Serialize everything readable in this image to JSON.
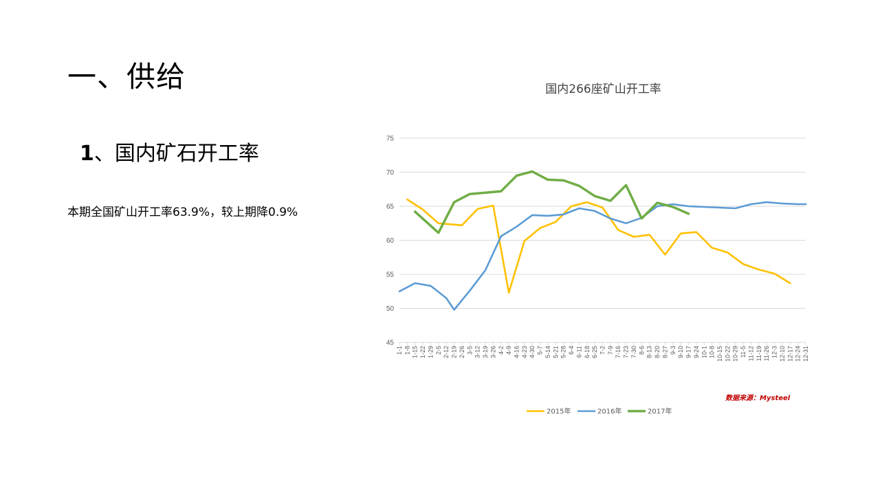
{
  "slide": {
    "title": "一、供给",
    "section_num": "1",
    "section_title": "、国内矿石开工率",
    "body": "本期全国矿山开工率63.9%，较上期降0.9%"
  },
  "source_note": "数据来源：Mysteel",
  "chart_data": {
    "type": "line",
    "title": "国内266座矿山开工率",
    "ylim": [
      45,
      75
    ],
    "yticks": [
      45,
      50,
      55,
      60,
      65,
      70,
      75
    ],
    "grid": true,
    "legend_position": "bottom",
    "categories": [
      "1-1",
      "1-8",
      "1-15",
      "1-22",
      "1-29",
      "2-5",
      "2-12",
      "2-19",
      "2-26",
      "3-5",
      "3-12",
      "3-19",
      "3-26",
      "4-2",
      "4-9",
      "4-16",
      "4-23",
      "4-30",
      "5-7",
      "5-14",
      "5-21",
      "5-28",
      "6-4",
      "6-11",
      "6-18",
      "6-25",
      "7-2",
      "7-9",
      "7-16",
      "7-23",
      "7-30",
      "8-6",
      "8-13",
      "8-20",
      "8-27",
      "9-3",
      "9-10",
      "9-17",
      "9-24",
      "10-1",
      "10-8",
      "10-15",
      "10-22",
      "10-29",
      "11-5",
      "11-12",
      "11-19",
      "11-26",
      "12-3",
      "12-10",
      "12-17",
      "12-24",
      "12-31"
    ],
    "series": [
      {
        "name": "2015年",
        "color": "#FFC000",
        "points": [
          {
            "x": "1-8",
            "y": 66.0
          },
          {
            "x": "1-22",
            "y": 64.5
          },
          {
            "x": "2-5",
            "y": 62.5
          },
          {
            "x": "2-19",
            "y": 62.3
          },
          {
            "x": "2-26",
            "y": 62.2
          },
          {
            "x": "3-12",
            "y": 64.6
          },
          {
            "x": "3-26",
            "y": 65.1
          },
          {
            "x": "4-9",
            "y": 52.3
          },
          {
            "x": "4-23",
            "y": 59.9
          },
          {
            "x": "5-7",
            "y": 61.8
          },
          {
            "x": "5-21",
            "y": 62.7
          },
          {
            "x": "6-4",
            "y": 65.0
          },
          {
            "x": "6-18",
            "y": 65.6
          },
          {
            "x": "7-2",
            "y": 64.8
          },
          {
            "x": "7-16",
            "y": 61.5
          },
          {
            "x": "7-30",
            "y": 60.5
          },
          {
            "x": "8-13",
            "y": 60.8
          },
          {
            "x": "8-27",
            "y": 57.9
          },
          {
            "x": "9-10",
            "y": 61.0
          },
          {
            "x": "9-24",
            "y": 61.2
          },
          {
            "x": "10-8",
            "y": 58.9
          },
          {
            "x": "10-22",
            "y": 58.2
          },
          {
            "x": "11-5",
            "y": 56.5
          },
          {
            "x": "11-19",
            "y": 55.7
          },
          {
            "x": "12-3",
            "y": 55.1
          },
          {
            "x": "12-17",
            "y": 53.7
          }
        ]
      },
      {
        "name": "2016年",
        "color": "#5B9BD5",
        "points": [
          {
            "x": "1-1",
            "y": 52.5
          },
          {
            "x": "1-15",
            "y": 53.7
          },
          {
            "x": "1-29",
            "y": 53.3
          },
          {
            "x": "2-12",
            "y": 51.5
          },
          {
            "x": "2-19",
            "y": 49.8
          },
          {
            "x": "3-5",
            "y": 52.6
          },
          {
            "x": "3-19",
            "y": 55.6
          },
          {
            "x": "4-2",
            "y": 60.6
          },
          {
            "x": "4-16",
            "y": 62.0
          },
          {
            "x": "4-30",
            "y": 63.7
          },
          {
            "x": "5-14",
            "y": 63.6
          },
          {
            "x": "5-28",
            "y": 63.8
          },
          {
            "x": "6-11",
            "y": 64.7
          },
          {
            "x": "6-25",
            "y": 64.3
          },
          {
            "x": "7-9",
            "y": 63.2
          },
          {
            "x": "7-23",
            "y": 62.5
          },
          {
            "x": "8-6",
            "y": 63.3
          },
          {
            "x": "8-20",
            "y": 65.0
          },
          {
            "x": "9-3",
            "y": 65.3
          },
          {
            "x": "9-17",
            "y": 65.0
          },
          {
            "x": "10-1",
            "y": 64.9
          },
          {
            "x": "10-15",
            "y": 64.8
          },
          {
            "x": "10-29",
            "y": 64.7
          },
          {
            "x": "11-12",
            "y": 65.3
          },
          {
            "x": "11-26",
            "y": 65.6
          },
          {
            "x": "12-10",
            "y": 65.4
          },
          {
            "x": "12-24",
            "y": 65.3
          },
          {
            "x": "12-31",
            "y": 65.3
          }
        ]
      },
      {
        "name": "2017年",
        "color": "#70AD47",
        "points": [
          {
            "x": "1-15",
            "y": 64.2
          },
          {
            "x": "2-5",
            "y": 61.1
          },
          {
            "x": "2-19",
            "y": 65.6
          },
          {
            "x": "3-5",
            "y": 66.8
          },
          {
            "x": "3-19",
            "y": 67.0
          },
          {
            "x": "4-2",
            "y": 67.2
          },
          {
            "x": "4-16",
            "y": 69.5
          },
          {
            "x": "4-30",
            "y": 70.1
          },
          {
            "x": "5-14",
            "y": 68.9
          },
          {
            "x": "5-28",
            "y": 68.8
          },
          {
            "x": "6-11",
            "y": 68.0
          },
          {
            "x": "6-25",
            "y": 66.5
          },
          {
            "x": "7-9",
            "y": 65.8
          },
          {
            "x": "7-23",
            "y": 68.1
          },
          {
            "x": "8-6",
            "y": 63.2
          },
          {
            "x": "8-20",
            "y": 65.5
          },
          {
            "x": "9-3",
            "y": 64.9
          },
          {
            "x": "9-17",
            "y": 63.9
          }
        ]
      }
    ]
  }
}
